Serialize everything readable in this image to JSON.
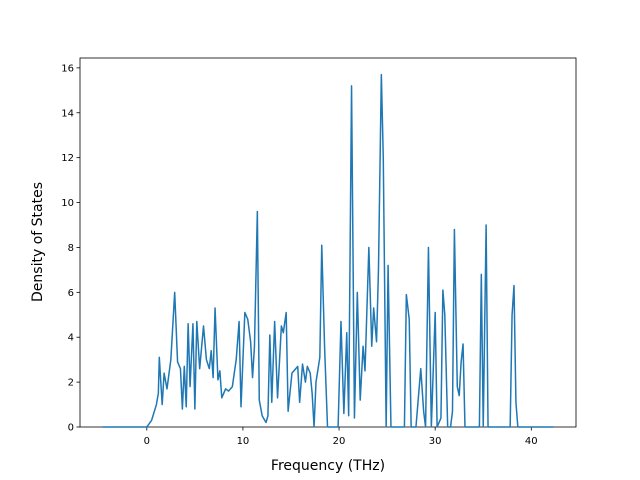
{
  "chart_data": {
    "type": "line",
    "x_label": "Frequency (THz)",
    "y_label": "Density of States",
    "xlim": [
      -6.95,
      44.65
    ],
    "ylim": [
      0,
      16.44
    ],
    "xticks": [
      0,
      10,
      20,
      30,
      40
    ],
    "yticks": [
      0,
      2,
      4,
      6,
      8,
      10,
      12,
      14,
      16
    ],
    "grid": false,
    "series": [
      {
        "name": "DOS",
        "color": "#1f77b4",
        "x": [
          -4.6,
          0,
          0.5,
          1,
          1.2,
          1.3,
          1.6,
          1.8,
          2.1,
          2.5,
          2.9,
          3.2,
          3.5,
          3.7,
          3.9,
          4.1,
          4.3,
          4.5,
          4.8,
          5.0,
          5.2,
          5.5,
          5.9,
          6.2,
          6.5,
          6.7,
          6.9,
          7.1,
          7.4,
          7.6,
          7.8,
          8.2,
          8.5,
          8.9,
          9.3,
          9.6,
          9.8,
          10.2,
          10.5,
          10.8,
          11.0,
          11.2,
          11.5,
          11.7,
          12.0,
          12.4,
          12.6,
          12.8,
          13.0,
          13.3,
          13.6,
          14.0,
          14.2,
          14.5,
          14.7,
          15.1,
          15.5,
          15.7,
          15.9,
          16.2,
          16.5,
          16.7,
          17.0,
          17.2,
          17.4,
          17.6,
          18.0,
          18.2,
          18.5,
          18.8,
          19.5,
          19.9,
          20.2,
          20.5,
          20.8,
          21.0,
          21.3,
          21.6,
          21.9,
          22.2,
          22.5,
          22.7,
          23.1,
          23.4,
          23.6,
          23.9,
          24.1,
          24.4,
          24.6,
          24.9,
          25.1,
          25.4,
          26.8,
          27.0,
          27.3,
          27.5,
          28.0,
          28.5,
          28.8,
          29.0,
          29.3,
          29.6,
          30.0,
          30.2,
          30.6,
          30.8,
          31.0,
          31.3,
          31.6,
          31.8,
          32.0,
          32.3,
          32.5,
          32.7,
          32.9,
          33.1,
          34.6,
          34.8,
          35.0,
          35.3,
          35.5,
          37.8,
          38.0,
          38.2,
          38.4,
          38.6,
          42.3
        ],
        "values": [
          0,
          0,
          0.3,
          1,
          1.5,
          3.1,
          1.0,
          2.4,
          1.7,
          3.0,
          6.0,
          2.9,
          2.6,
          0.8,
          2.7,
          0.9,
          4.6,
          1.8,
          4.6,
          0.8,
          4.7,
          2.6,
          4.5,
          3.0,
          2.6,
          3.4,
          2.2,
          5.3,
          2.1,
          2.5,
          1.3,
          1.7,
          1.6,
          1.8,
          3.0,
          4.7,
          0.9,
          5.1,
          4.8,
          3.8,
          2.2,
          3.6,
          9.6,
          1.2,
          0.5,
          0.2,
          0.5,
          4.1,
          1.1,
          4.7,
          1.3,
          4.5,
          4.2,
          5.1,
          0.7,
          2.4,
          2.6,
          2.7,
          1.1,
          2.8,
          2.0,
          2.7,
          2.4,
          1.5,
          0,
          2.0,
          3.1,
          8.1,
          3.5,
          0,
          0,
          0,
          4.7,
          0.6,
          4.2,
          0.5,
          15.2,
          0.4,
          6.0,
          1.2,
          3.6,
          2.5,
          8.0,
          3.6,
          5.3,
          3.8,
          7.0,
          15.7,
          12.0,
          0,
          7.2,
          0,
          0,
          5.9,
          4.8,
          0,
          0,
          2.6,
          0.7,
          0,
          8.0,
          0,
          5.1,
          0,
          0.4,
          6.1,
          5.0,
          0,
          0,
          0.7,
          8.8,
          1.8,
          1.4,
          2.9,
          3.7,
          0,
          0,
          6.8,
          0,
          9.0,
          0,
          0,
          5.0,
          6.3,
          1.1,
          0,
          0
        ]
      }
    ]
  }
}
